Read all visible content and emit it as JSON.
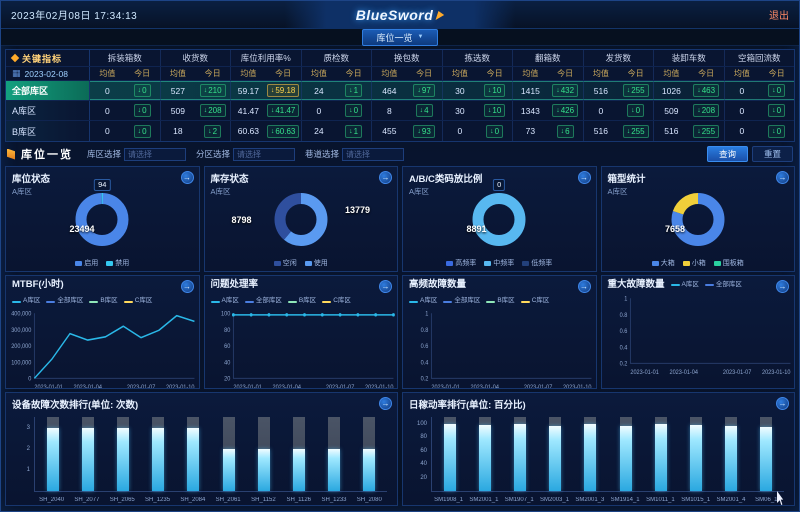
{
  "header": {
    "datetime": "2023年02月08日 17:34:13",
    "logo": "BlueSword",
    "exit": "退出"
  },
  "nav": {
    "tab": "库位一览"
  },
  "kpi": {
    "title": "关键指标",
    "date": "2023-02-08",
    "subcols": [
      "均值",
      "今日"
    ],
    "columns": [
      "拆装箱数",
      "收货数",
      "库位利用率%",
      "质检数",
      "换包数",
      "拣选数",
      "翻箱数",
      "发货数",
      "装卸车数",
      "空箱回流数"
    ],
    "rows": [
      {
        "label": "全部库区",
        "selected": true,
        "cells": [
          {
            "avg": "0",
            "today": "0"
          },
          {
            "avg": "527",
            "today": "210"
          },
          {
            "avg": "59.17",
            "today": "59.18",
            "highlight": "gold"
          },
          {
            "avg": "24",
            "today": "1"
          },
          {
            "avg": "464",
            "today": "97"
          },
          {
            "avg": "30",
            "today": "10"
          },
          {
            "avg": "1415",
            "today": "432"
          },
          {
            "avg": "516",
            "today": "255"
          },
          {
            "avg": "1026",
            "today": "463"
          },
          {
            "avg": "0",
            "today": "0"
          }
        ]
      },
      {
        "label": "A库区",
        "selected": false,
        "cells": [
          {
            "avg": "0",
            "today": "0"
          },
          {
            "avg": "509",
            "today": "208"
          },
          {
            "avg": "41.47",
            "today": "41.47"
          },
          {
            "avg": "0",
            "today": "0"
          },
          {
            "avg": "8",
            "today": "4"
          },
          {
            "avg": "30",
            "today": "10"
          },
          {
            "avg": "1343",
            "today": "426"
          },
          {
            "avg": "0",
            "today": "0"
          },
          {
            "avg": "509",
            "today": "208"
          },
          {
            "avg": "0",
            "today": "0"
          }
        ]
      },
      {
        "label": "B库区",
        "selected": false,
        "cells": [
          {
            "avg": "0",
            "today": "0"
          },
          {
            "avg": "18",
            "today": "2"
          },
          {
            "avg": "60.63",
            "today": "60.63"
          },
          {
            "avg": "24",
            "today": "1"
          },
          {
            "avg": "455",
            "today": "93"
          },
          {
            "avg": "0",
            "today": "0"
          },
          {
            "avg": "73",
            "today": "6"
          },
          {
            "avg": "516",
            "today": "255"
          },
          {
            "avg": "516",
            "today": "255"
          },
          {
            "avg": "0",
            "today": "0"
          }
        ]
      }
    ]
  },
  "section": {
    "title": "库位一览",
    "filters": [
      {
        "label": "库区选择",
        "placeholder": "请选择"
      },
      {
        "label": "分区选择",
        "placeholder": "请选择"
      },
      {
        "label": "巷道选择",
        "placeholder": "请选择"
      }
    ],
    "buttons": [
      {
        "label": "查询",
        "style": "primary"
      },
      {
        "label": "重置",
        "style": "ghost"
      }
    ]
  },
  "donuts": [
    {
      "title": "库位状态",
      "subtitle": "A库区",
      "callout": "94",
      "segments": [
        {
          "label": "启用",
          "value": 23494,
          "color": "#4a86e8"
        },
        {
          "label": "禁用",
          "value": 94,
          "color": "#35c8f0"
        }
      ],
      "labels": [
        {
          "text": "23494",
          "pos": "bl"
        }
      ],
      "legend": [
        {
          "label": "启用",
          "color": "#4a86e8"
        },
        {
          "label": "禁用",
          "color": "#35c8f0"
        }
      ]
    },
    {
      "title": "库存状态",
      "subtitle": "A库区",
      "segments": [
        {
          "label": "使用",
          "value": 13779,
          "color": "#5a9af0"
        },
        {
          "label": "空闲",
          "value": 8798,
          "color": "#2f4f9e"
        }
      ],
      "labels": [
        {
          "text": "8798",
          "pos": "l"
        },
        {
          "text": "13779",
          "pos": "r"
        }
      ],
      "legend": [
        {
          "label": "空闲",
          "color": "#2f4f9e"
        },
        {
          "label": "使用",
          "color": "#5a9af0"
        }
      ]
    },
    {
      "title": "A/B/C类码放比例",
      "subtitle": "A库区",
      "callout": "0",
      "segments": [
        {
          "label": "中频率",
          "value": 8891,
          "color": "#58b8f0"
        }
      ],
      "labels": [
        {
          "text": "8891",
          "pos": "bl"
        }
      ],
      "legend": [
        {
          "label": "高频率",
          "color": "#3a6ae0"
        },
        {
          "label": "中频率",
          "color": "#58b8f0"
        },
        {
          "label": "低频率",
          "color": "#23407a"
        }
      ]
    },
    {
      "title": "箱型统计",
      "subtitle": "A库区",
      "segments": [
        {
          "label": "大箱",
          "value": 7658,
          "color": "#4a86e8"
        },
        {
          "label": "小箱",
          "value": 1900,
          "color": "#f0cf3a"
        }
      ],
      "labels": [
        {
          "text": "7658",
          "pos": "bl"
        }
      ],
      "legend": [
        {
          "label": "大箱",
          "color": "#4a86e8"
        },
        {
          "label": "小箱",
          "color": "#f0cf3a"
        },
        {
          "label": "围板箱",
          "color": "#2ad1a0"
        }
      ]
    }
  ],
  "line_charts": [
    {
      "title": "MTBF(小时)",
      "legend": [
        {
          "label": "A库区",
          "color": "#2ab8e8"
        },
        {
          "label": "全部库区",
          "color": "#4a7de0"
        },
        {
          "label": "B库区",
          "color": "#8fe6b8"
        },
        {
          "label": "C库区",
          "color": "#ffd95c"
        }
      ],
      "yticks": [
        "400,000",
        "300,000",
        "200,000",
        "100,000",
        "0"
      ],
      "xticks": [
        "2023-01-01",
        "2023-01-04",
        "2023-01-07",
        "2023-01-10"
      ],
      "series": [
        {
          "name": "A库区",
          "color": "#2ab8e8",
          "markers": false,
          "values": [
            0,
            120000,
            275000,
            235000,
            255000,
            320000,
            250000,
            295000,
            385000,
            350000
          ]
        }
      ]
    },
    {
      "title": "问题处理率",
      "legend": [
        {
          "label": "A库区",
          "color": "#2ab8e8"
        },
        {
          "label": "全部库区",
          "color": "#4a7de0"
        },
        {
          "label": "B库区",
          "color": "#8fe6b8"
        },
        {
          "label": "C库区",
          "color": "#ffd95c"
        }
      ],
      "yticks": [
        "100",
        "80",
        "60",
        "40",
        "20"
      ],
      "xticks": [
        "2023-01-01",
        "2023-01-04",
        "2023-01-07",
        "2023-01-10"
      ],
      "series": [
        {
          "name": "A库区",
          "color": "#2ab8e8",
          "markers": true,
          "values": [
            98,
            98,
            98,
            98,
            98,
            98,
            98,
            98,
            98,
            98
          ]
        }
      ]
    },
    {
      "title": "高频故障数量",
      "legend": [
        {
          "label": "A库区",
          "color": "#2ab8e8"
        },
        {
          "label": "全部库区",
          "color": "#4a7de0"
        },
        {
          "label": "B库区",
          "color": "#8fe6b8"
        },
        {
          "label": "C库区",
          "color": "#ffd95c"
        }
      ],
      "yticks": [
        "1",
        "0.8",
        "0.6",
        "0.4",
        "0.2"
      ],
      "xticks": [
        "2023-01-01",
        "2023-01-04",
        "2023-01-07",
        "2023-01-10"
      ],
      "series": []
    },
    {
      "title": "重大故障数量",
      "legend": [
        {
          "label": "A库区",
          "color": "#2ab8e8"
        },
        {
          "label": "全部库区",
          "color": "#4a7de0"
        }
      ],
      "yticks": [
        "1",
        "0.8",
        "0.6",
        "0.4",
        "0.2"
      ],
      "xticks": [
        "2023-01-01",
        "2023-01-04",
        "2023-01-07",
        "2023-01-10"
      ],
      "series": []
    }
  ],
  "bar_charts": [
    {
      "title": "设备故障次数排行(单位: 次数)",
      "yticks": [
        "1",
        "2",
        "3"
      ],
      "scale_max": 3.5,
      "categories": [
        "SH_2040",
        "SH_2077",
        "SH_2065",
        "SH_1235",
        "SH_2084",
        "SH_2061",
        "SH_1152",
        "SH_1126",
        "SH_1233",
        "SH_2080"
      ],
      "values": [
        3,
        3,
        3,
        3,
        3,
        2,
        2,
        2,
        2,
        2
      ]
    },
    {
      "title": "日稼动率排行(单位: 百分比)",
      "yticks": [
        "20",
        "40",
        "60",
        "80",
        "100"
      ],
      "scale_max": 110,
      "categories": [
        "SM1908_1",
        "SM2001_1",
        "SM1907_1",
        "SM2003_1",
        "SM2001_3",
        "SM1914_1",
        "SM1011_1",
        "SM1015_1",
        "SM2001_4",
        "SM06_1"
      ],
      "values": [
        100,
        98,
        100,
        97,
        100,
        96,
        99,
        98,
        97,
        95
      ]
    }
  ]
}
